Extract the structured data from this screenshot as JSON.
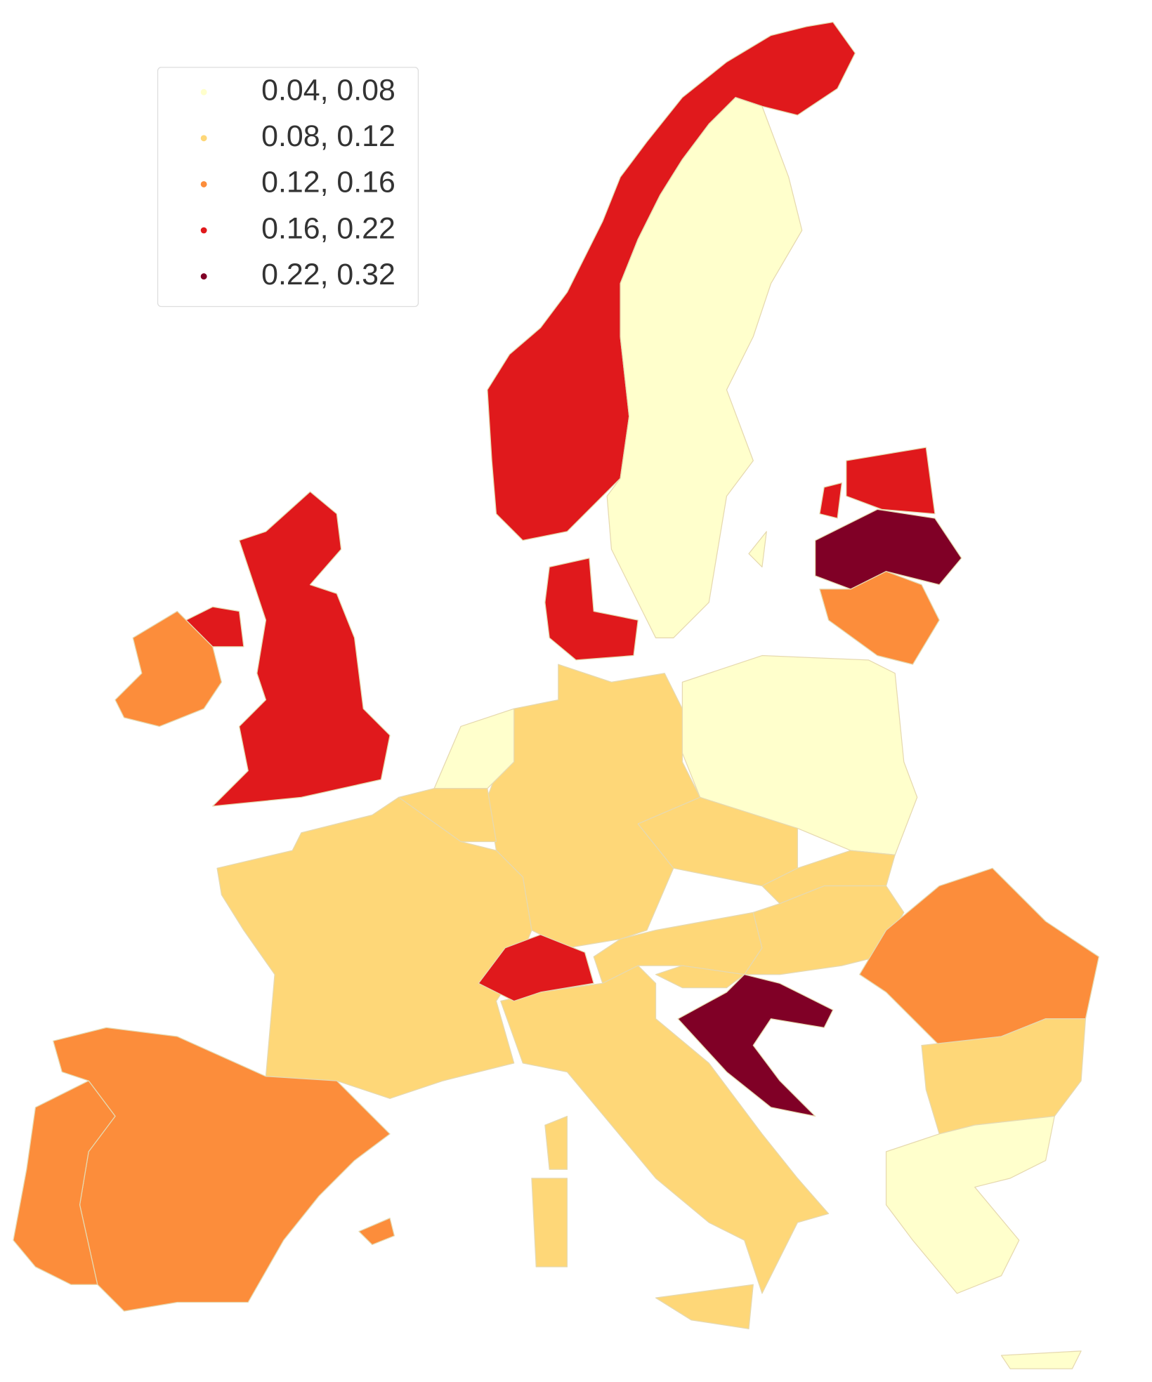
{
  "legend": {
    "items": [
      {
        "label": "0.04, 0.08",
        "color": "#ffffcc"
      },
      {
        "label": "0.08, 0.12",
        "color": "#fed778"
      },
      {
        "label": "0.12, 0.16",
        "color": "#fc8d3b"
      },
      {
        "label": "0.16, 0.22",
        "color": "#e0191c"
      },
      {
        "label": "0.22, 0.32",
        "color": "#800026"
      }
    ]
  }
}
